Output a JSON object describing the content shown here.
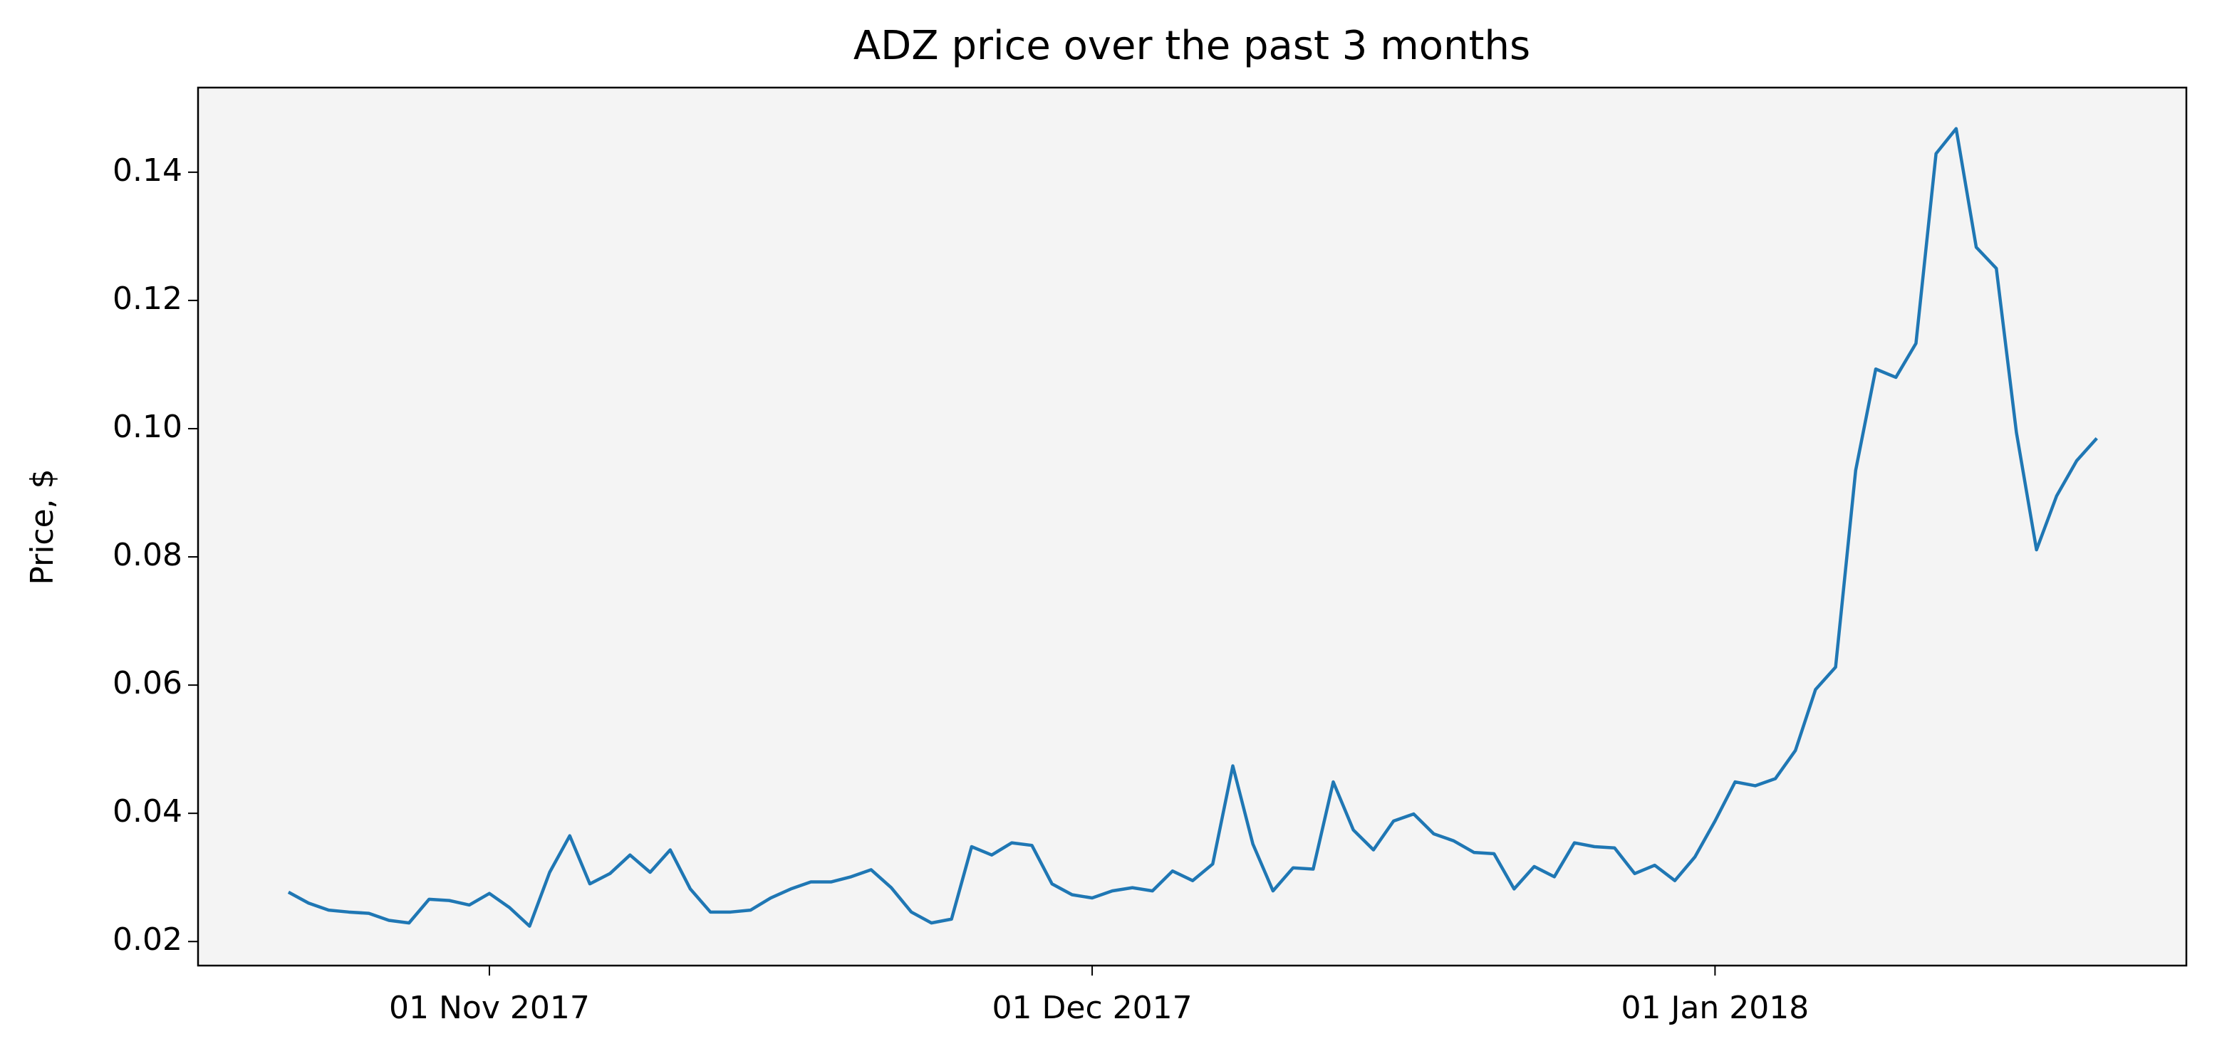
{
  "chart_data": {
    "type": "line",
    "title": "ADZ price over the past 3 months",
    "y_label": "Price, $",
    "x": [
      "2017-10-22",
      "2017-10-23",
      "2017-10-24",
      "2017-10-25",
      "2017-10-26",
      "2017-10-27",
      "2017-10-28",
      "2017-10-29",
      "2017-10-30",
      "2017-10-31",
      "2017-11-01",
      "2017-11-02",
      "2017-11-03",
      "2017-11-04",
      "2017-11-05",
      "2017-11-06",
      "2017-11-07",
      "2017-11-08",
      "2017-11-09",
      "2017-11-10",
      "2017-11-11",
      "2017-11-12",
      "2017-11-13",
      "2017-11-14",
      "2017-11-15",
      "2017-11-16",
      "2017-11-17",
      "2017-11-18",
      "2017-11-19",
      "2017-11-20",
      "2017-11-21",
      "2017-11-22",
      "2017-11-23",
      "2017-11-24",
      "2017-11-25",
      "2017-11-26",
      "2017-11-27",
      "2017-11-28",
      "2017-11-29",
      "2017-11-30",
      "2017-12-01",
      "2017-12-02",
      "2017-12-03",
      "2017-12-04",
      "2017-12-05",
      "2017-12-06",
      "2017-12-07",
      "2017-12-08",
      "2017-12-09",
      "2017-12-10",
      "2017-12-11",
      "2017-12-12",
      "2017-12-13",
      "2017-12-14",
      "2017-12-15",
      "2017-12-16",
      "2017-12-17",
      "2017-12-18",
      "2017-12-19",
      "2017-12-20",
      "2017-12-21",
      "2017-12-22",
      "2017-12-23",
      "2017-12-24",
      "2017-12-25",
      "2017-12-26",
      "2017-12-27",
      "2017-12-28",
      "2017-12-29",
      "2017-12-30",
      "2017-12-31",
      "2018-01-01",
      "2018-01-02",
      "2018-01-03",
      "2018-01-04",
      "2018-01-05",
      "2018-01-06",
      "2018-01-07",
      "2018-01-08",
      "2018-01-09",
      "2018-01-10",
      "2018-01-11",
      "2018-01-12",
      "2018-01-13",
      "2018-01-14",
      "2018-01-15",
      "2018-01-16",
      "2018-01-17",
      "2018-01-18",
      "2018-01-19",
      "2018-01-20"
    ],
    "values": [
      0.0277,
      0.026,
      0.0249,
      0.0246,
      0.0244,
      0.0233,
      0.0229,
      0.0266,
      0.0264,
      0.0257,
      0.0275,
      0.0253,
      0.0224,
      0.0308,
      0.0365,
      0.029,
      0.0306,
      0.0335,
      0.0308,
      0.0343,
      0.0282,
      0.0246,
      0.0246,
      0.0249,
      0.0268,
      0.0282,
      0.0293,
      0.0293,
      0.0301,
      0.0312,
      0.0284,
      0.0246,
      0.0229,
      0.0235,
      0.0348,
      0.0335,
      0.0354,
      0.035,
      0.029,
      0.0273,
      0.0268,
      0.0279,
      0.0284,
      0.0279,
      0.031,
      0.0295,
      0.0321,
      0.0474,
      0.0352,
      0.0279,
      0.0315,
      0.0313,
      0.0449,
      0.0374,
      0.0343,
      0.0388,
      0.0399,
      0.0368,
      0.0357,
      0.0339,
      0.0337,
      0.0282,
      0.0317,
      0.0301,
      0.0354,
      0.0348,
      0.0346,
      0.0306,
      0.0319,
      0.0295,
      0.0332,
      0.0388,
      0.0449,
      0.0443,
      0.0454,
      0.0498,
      0.0593,
      0.0628,
      0.0935,
      0.1093,
      0.108,
      0.1133,
      0.1429,
      0.1468,
      0.1283,
      0.125,
      0.0994,
      0.0811,
      0.0895,
      0.095,
      0.0985
    ],
    "color": "#1f77b4",
    "xlim": [
      "2017-10-17T12:00:00Z",
      "2018-01-24T11:00:00Z"
    ],
    "xticks": [
      {
        "value": "2017-11-01",
        "label": "01 Nov 2017"
      },
      {
        "value": "2017-12-01",
        "label": "01 Dec 2017"
      },
      {
        "value": "2018-01-01",
        "label": "01 Jan 2018"
      }
    ],
    "ylim": [
      0.01625,
      0.1532
    ],
    "yticks": [
      0.02,
      0.04,
      0.06,
      0.08,
      {
        "value": 0.1,
        "label": "0.10"
      },
      0.12,
      0.14
    ],
    "plot_background": "#f4f4f4"
  }
}
